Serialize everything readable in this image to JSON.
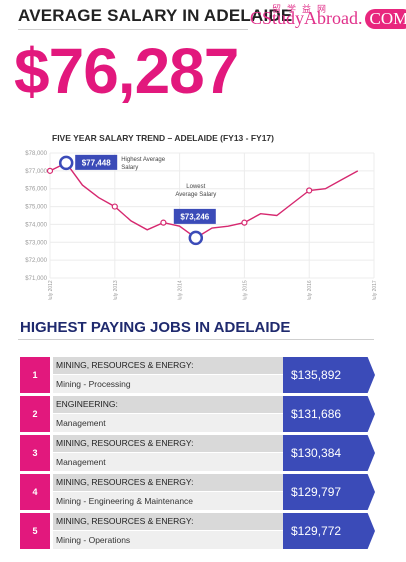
{
  "header": {
    "title": "AVERAGE SALARY IN ADELAIDE",
    "average_salary": "$76,287"
  },
  "watermark": {
    "chinese": "留学益网",
    "brand": "CStudyAbroad.",
    "com": "COM"
  },
  "chart_data": {
    "type": "line",
    "title": "FIVE YEAR SALARY TREND – ADELAIDE (FY13 - FY17)",
    "x": [
      "July 2012",
      "July 2013",
      "July 2014",
      "July 2015",
      "July 2016",
      "July 2017"
    ],
    "y_ticks": [
      "$78,000",
      "$77,000",
      "$76,000",
      "$75,000",
      "$74,000",
      "$73,000",
      "$72,000",
      "$71,000"
    ],
    "ylim": [
      71000,
      78000
    ],
    "series": [
      {
        "points": [
          {
            "x": "2012-07",
            "y": 77000
          },
          {
            "x": "2012-10",
            "y": 77448
          },
          {
            "x": "2013-01",
            "y": 76200
          },
          {
            "x": "2013-04",
            "y": 75500
          },
          {
            "x": "2013-07",
            "y": 75000
          },
          {
            "x": "2013-10",
            "y": 74200
          },
          {
            "x": "2014-01",
            "y": 73700
          },
          {
            "x": "2014-04",
            "y": 74100
          },
          {
            "x": "2014-07",
            "y": 73900
          },
          {
            "x": "2014-10",
            "y": 73246
          },
          {
            "x": "2015-01",
            "y": 73800
          },
          {
            "x": "2015-04",
            "y": 73900
          },
          {
            "x": "2015-07",
            "y": 74100
          },
          {
            "x": "2015-10",
            "y": 74600
          },
          {
            "x": "2016-01",
            "y": 74500
          },
          {
            "x": "2016-04",
            "y": 75200
          },
          {
            "x": "2016-07",
            "y": 75900
          },
          {
            "x": "2016-10",
            "y": 76000
          },
          {
            "x": "2017-01",
            "y": 76500
          },
          {
            "x": "2017-04",
            "y": 77000
          }
        ]
      }
    ],
    "markers": [
      "2012-07",
      "2013-07",
      "2014-04",
      "2015-07",
      "2016-07"
    ],
    "highest": {
      "x": "2012-10",
      "value_label": "$77,448",
      "label_lines": [
        "Highest Average",
        "Salary"
      ]
    },
    "lowest": {
      "x": "2014-10",
      "value_label": "$73,246",
      "label_lines": [
        "Lowest",
        "Average Salary"
      ]
    },
    "grid": true,
    "line_color": "#d6286f"
  },
  "jobs": {
    "title": "HIGHEST PAYING JOBS IN ADELAIDE",
    "rows": [
      {
        "rank": "1",
        "category": "MINING, RESOURCES & ENERGY:",
        "role": "Mining - Processing",
        "salary": "$135,892"
      },
      {
        "rank": "2",
        "category": "ENGINEERING:",
        "role": "Management",
        "salary": "$131,686"
      },
      {
        "rank": "3",
        "category": "MINING, RESOURCES & ENERGY:",
        "role": "Management",
        "salary": "$130,384"
      },
      {
        "rank": "4",
        "category": "MINING, RESOURCES & ENERGY:",
        "role": "Mining - Engineering & Maintenance",
        "salary": "$129,797"
      },
      {
        "rank": "5",
        "category": "MINING, RESOURCES & ENERGY:",
        "role": "Mining - Operations",
        "salary": "$129,772"
      }
    ]
  },
  "colors": {
    "accent_pink": "#e2187d",
    "accent_blue": "#3b4bb8",
    "title_navy": "#1f2a6e"
  }
}
